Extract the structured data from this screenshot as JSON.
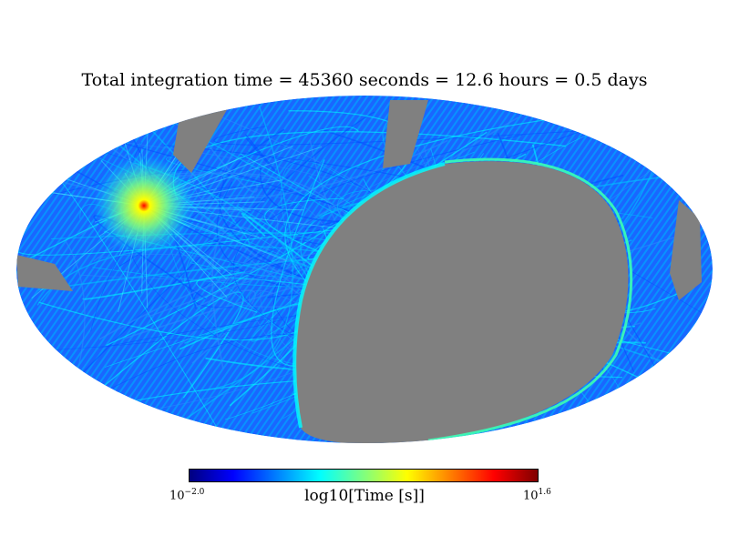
{
  "title": "Total integration time = 45360 seconds = 12.6 hours = 0.5 days",
  "projection": "mollweide",
  "colors": {
    "masked": "#808080",
    "background": "#ffffff"
  },
  "colormap": {
    "name": "jet",
    "stops": [
      "#00007f",
      "#0000ff",
      "#007fff",
      "#00ffff",
      "#7fff7f",
      "#ffff00",
      "#ff7f00",
      "#ff0000",
      "#7f0000"
    ]
  },
  "colorbar": {
    "min_base": "10",
    "min_exp": "−2.0",
    "max_base": "10",
    "max_exp": "1.6",
    "label": "log10[Time [s]]"
  }
}
